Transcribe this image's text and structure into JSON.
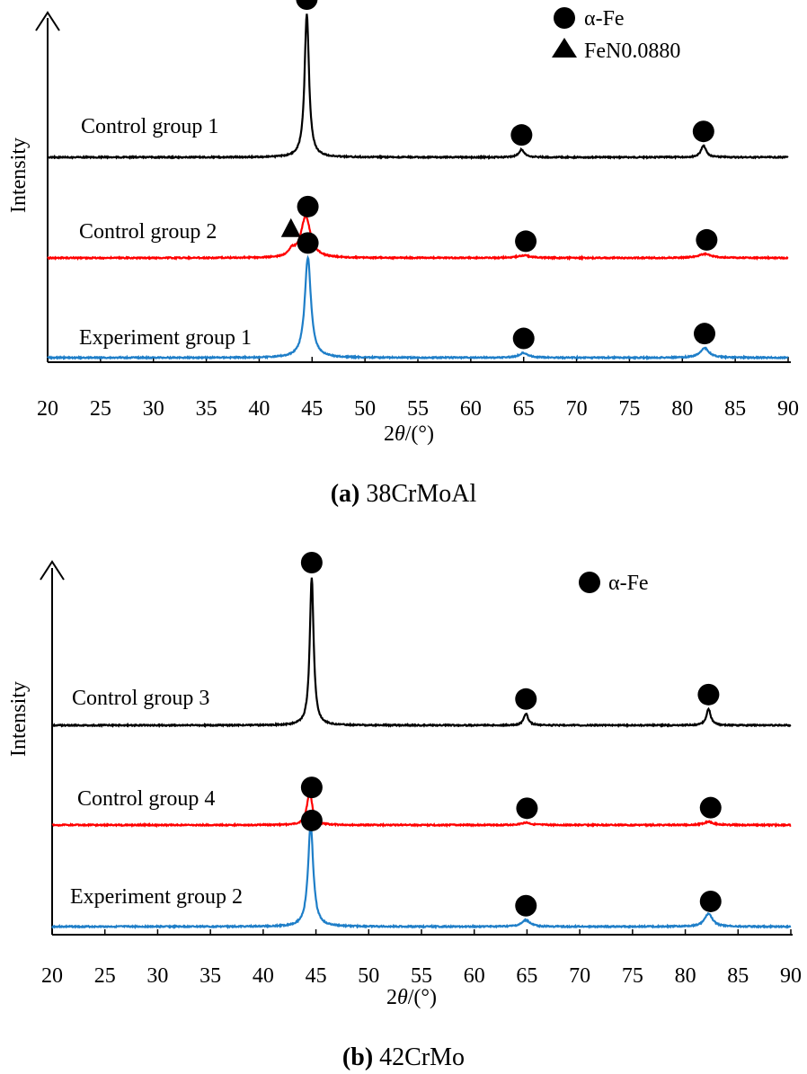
{
  "chart_data": [
    {
      "type": "line",
      "caption_letter": "(a)",
      "caption_text": "38CrMoAl",
      "xlabel_pre": "2",
      "xlabel_theta": "θ",
      "xlabel_post": "/(°)",
      "ylabel": "Intensity",
      "xlim": [
        20,
        90
      ],
      "xticks": [
        "20",
        "25",
        "30",
        "35",
        "40",
        "45",
        "50",
        "55",
        "60",
        "65",
        "70",
        "75",
        "80",
        "85",
        "90"
      ],
      "legend": [
        {
          "marker": "circle",
          "label": "α-Fe"
        },
        {
          "marker": "triangle",
          "label": "FeN0.0880"
        }
      ],
      "series": [
        {
          "name": "Control group 1",
          "color": "#000000",
          "peaks": [
            {
              "x": 44.5,
              "h": 1.0,
              "w": 0.25
            },
            {
              "x": 64.8,
              "h": 0.055,
              "w": 0.3
            },
            {
              "x": 82.0,
              "h": 0.08,
              "w": 0.3
            }
          ],
          "markers": [
            {
              "type": "circle",
              "x": 44.5
            },
            {
              "type": "circle",
              "x": 64.8
            },
            {
              "type": "circle",
              "x": 82.0
            }
          ]
        },
        {
          "name": "Control group 2",
          "color": "#ff0000",
          "peaks": [
            {
              "x": 44.4,
              "h": 0.42,
              "w": 0.55
            },
            {
              "x": 43.1,
              "h": 0.06,
              "w": 0.35
            },
            {
              "x": 65.0,
              "h": 0.025,
              "w": 0.7
            },
            {
              "x": 82.1,
              "h": 0.04,
              "w": 0.7
            }
          ],
          "markers": [
            {
              "type": "triangle",
              "x": 43.0
            },
            {
              "type": "circle",
              "x": 44.6
            },
            {
              "type": "circle",
              "x": 65.2
            },
            {
              "type": "circle",
              "x": 82.3
            }
          ]
        },
        {
          "name": "Experiment group 1",
          "color": "#1e7ec8",
          "peaks": [
            {
              "x": 44.6,
              "h": 0.62,
              "w": 0.35
            },
            {
              "x": 65.0,
              "h": 0.03,
              "w": 0.5
            },
            {
              "x": 82.1,
              "h": 0.06,
              "w": 0.5
            }
          ],
          "markers": [
            {
              "type": "circle",
              "x": 44.6
            },
            {
              "type": "circle",
              "x": 65.0
            },
            {
              "type": "circle",
              "x": 82.1
            }
          ]
        }
      ]
    },
    {
      "type": "line",
      "caption_letter": "(b)",
      "caption_text": "42CrMo",
      "xlabel_pre": "2",
      "xlabel_theta": "θ",
      "xlabel_post": "/(°)",
      "ylabel": "Intensity",
      "xlim": [
        20,
        90
      ],
      "xticks": [
        "20",
        "25",
        "30",
        "35",
        "40",
        "45",
        "50",
        "55",
        "60",
        "65",
        "70",
        "75",
        "80",
        "85",
        "90"
      ],
      "legend": [
        {
          "marker": "circle",
          "label": "α-Fe"
        }
      ],
      "series": [
        {
          "name": "Control group 3",
          "color": "#000000",
          "peaks": [
            {
              "x": 44.6,
              "h": 1.0,
              "w": 0.22
            },
            {
              "x": 64.9,
              "h": 0.08,
              "w": 0.25
            },
            {
              "x": 82.2,
              "h": 0.11,
              "w": 0.25
            }
          ],
          "markers": [
            {
              "type": "circle",
              "x": 44.6
            },
            {
              "type": "circle",
              "x": 64.9
            },
            {
              "type": "circle",
              "x": 82.2
            }
          ]
        },
        {
          "name": "Control group 4",
          "color": "#ff0000",
          "peaks": [
            {
              "x": 44.4,
              "h": 0.34,
              "w": 0.3
            },
            {
              "x": 64.9,
              "h": 0.025,
              "w": 0.5
            },
            {
              "x": 82.2,
              "h": 0.035,
              "w": 0.5
            }
          ],
          "markers": [
            {
              "type": "circle",
              "x": 44.6
            },
            {
              "type": "circle",
              "x": 65.0
            },
            {
              "type": "circle",
              "x": 82.4
            }
          ]
        },
        {
          "name": "Experiment group 2",
          "color": "#1e7ec8",
          "peaks": [
            {
              "x": 44.5,
              "h": 0.63,
              "w": 0.3
            },
            {
              "x": 64.9,
              "h": 0.04,
              "w": 0.45
            },
            {
              "x": 82.2,
              "h": 0.08,
              "w": 0.45
            }
          ],
          "markers": [
            {
              "type": "circle",
              "x": 44.6
            },
            {
              "type": "circle",
              "x": 64.9
            },
            {
              "type": "circle",
              "x": 82.4
            }
          ]
        }
      ]
    }
  ]
}
